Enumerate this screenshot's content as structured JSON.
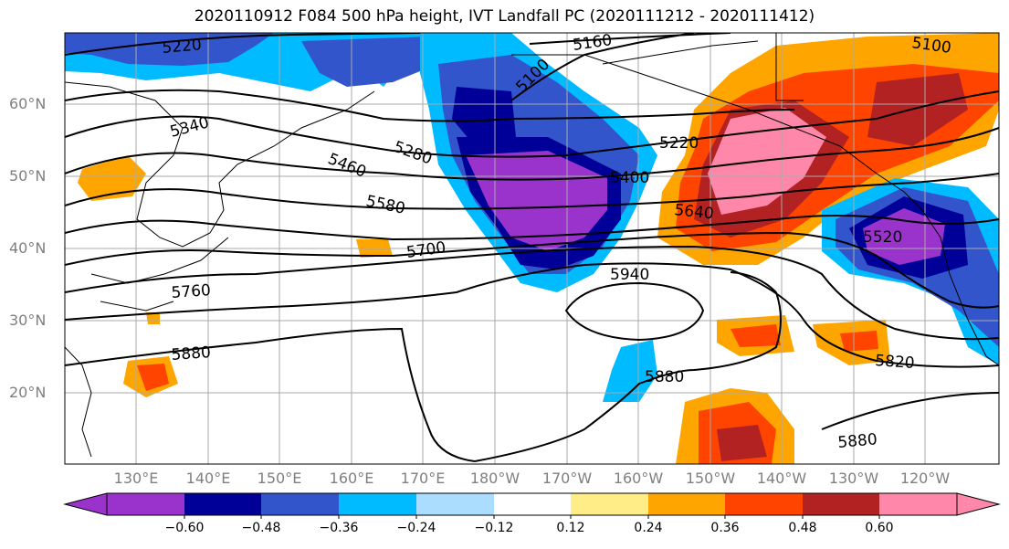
{
  "title": "2020110912 F084 500 hPa height, IVT Landfall PC (2020111212 - 2020111412)",
  "map": {
    "lat_labels": [
      "60°N",
      "50°N",
      "40°N",
      "30°N",
      "20°N"
    ],
    "lon_labels": [
      "130°E",
      "140°E",
      "150°E",
      "160°E",
      "170°E",
      "180°W",
      "170°W",
      "160°W",
      "150°W",
      "140°W",
      "130°W",
      "120°W"
    ],
    "height_contour_labels": [
      "5220",
      "5160",
      "5100",
      "5100",
      "5340",
      "5280",
      "5220",
      "5460",
      "5400",
      "5580",
      "5640",
      "5520",
      "5700",
      "5940",
      "5760",
      "5880",
      "5880",
      "5820",
      "5880"
    ]
  },
  "colorbar": {
    "ticks": [
      "−0.60",
      "−0.48",
      "−0.36",
      "−0.24",
      "−0.12",
      "0.12",
      "0.24",
      "0.36",
      "0.48",
      "0.60"
    ],
    "colors": [
      "#9933cc",
      "#000099",
      "#3355cc",
      "#00bbff",
      "#aaddff",
      "#ffffff",
      "#ffee88",
      "#ffa500",
      "#ff4400",
      "#b22222",
      "#ff88aa"
    ]
  }
}
